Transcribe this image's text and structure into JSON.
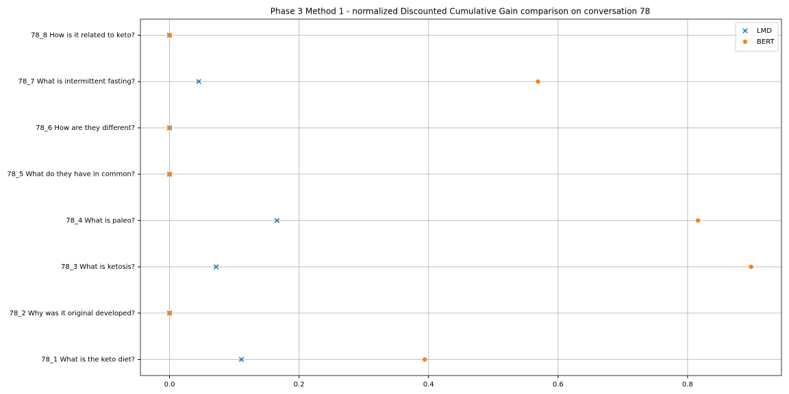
{
  "chart_data": {
    "type": "scatter",
    "title": "Phase 3 Method 1 - normalized Discounted Cumulative Gain comparison on conversation 78",
    "categories": [
      "78_1 What is the keto diet?",
      "78_2 Why was it original developed?",
      "78_3 What is ketosis?",
      "78_4 What is paleo?",
      "78_5 What do they have in common?",
      "78_6 How are they different?",
      "78_7 What is intermittent fasting?",
      "78_8 How is it related to keto?"
    ],
    "series": [
      {
        "name": "LMD",
        "color": "#1f77b4",
        "marker": "x",
        "values": [
          0.111,
          0,
          0.072,
          0.166,
          0,
          0,
          0.045,
          0
        ]
      },
      {
        "name": "BERT",
        "color": "#ff7f0e",
        "marker": "o",
        "values": [
          0.394,
          0,
          0.898,
          0.816,
          0,
          0,
          0.569,
          0
        ]
      }
    ],
    "xlim": [
      -0.045,
      0.945
    ],
    "xticks": [
      {
        "value": 0,
        "label": "0.0"
      },
      0.2,
      0.4,
      0.6,
      0.8
    ],
    "grid": true,
    "legend": "upper right"
  }
}
